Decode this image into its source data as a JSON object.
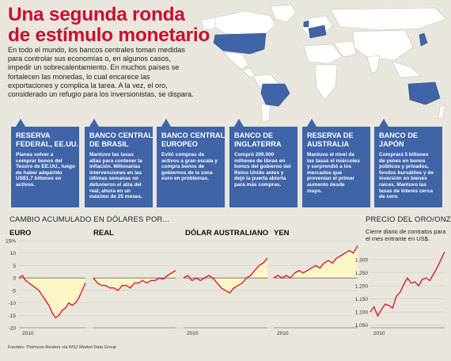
{
  "header": {
    "title_lines": [
      "Una segunda ronda",
      "de estímulo monetario"
    ],
    "intro_lines": [
      "En todo el mundo, los bancos centrales toman medidas",
      "para controlar sus economías o, en algunos casos,",
      "impedir un sobrecalentamiento. En muchos países se",
      "fortalecen las monedas, lo cual encarece las",
      "exportaciones y complica la tarea. A la vez, el oro,",
      "considerado un refugio para los inversionistas, se dispara."
    ]
  },
  "colors": {
    "title_red": "#c8102e",
    "card_blue": "#3f64a8",
    "map_highlight": "#3f64a8",
    "map_land": "#ffffff",
    "line_red": "#d21f2b",
    "fill_yellow": "#fdf6c6"
  },
  "banks": [
    {
      "name_lines": [
        "RESERVA",
        "FEDERAL, EE.UU."
      ],
      "text_lines": [
        "Planea volver a",
        "comprar bonos del",
        "Tesoro de EE.UU., luego",
        "de haber adquirido",
        "US$1,7 billones en",
        "activos."
      ]
    },
    {
      "name_lines": [
        "BANCO CENTRAL",
        "DE BRASIL"
      ],
      "text_lines": [
        "Mantuvo las tasas",
        "altas para contener la",
        "inflación. Millonarias",
        "intervenciones en las",
        "últimas semanas no",
        "detuvieron el alza del",
        "real, ahora en un",
        "máximo de 25 meses."
      ]
    },
    {
      "name_lines": [
        "BANCO CENTRAL",
        "EUROPEO"
      ],
      "text_lines": [
        "Evitó compras de",
        "activos a gran escala y",
        "compra bonos de",
        "gobiernos de la zona",
        "euro en problemas."
      ]
    },
    {
      "name_lines": [
        "BANCO DE",
        "INGLATERRA"
      ],
      "text_lines": [
        "Compró 200.000",
        "millones de libras en",
        "bonos del gobierno del",
        "Reino Unido antes y",
        "dejó la puerta abierta",
        "para más compras."
      ]
    },
    {
      "name_lines": [
        "RESERVA DE",
        "AUSTRALIA"
      ],
      "text_lines": [
        "Mantuvo el nivel de",
        "las tasas el miércoles",
        "y sorprendió a los",
        "mercados que",
        "prevenían el primer",
        "aumento desde",
        "mayo."
      ]
    },
    {
      "name_lines": [
        "BANCO DE",
        "JAPÓN"
      ],
      "text_lines": [
        "Comprará 5 billones",
        "de yenes en bonos",
        "públicos y privados,",
        "fondos bursátiles y de",
        "inversión en bienes",
        "raíces. Mantuvo las",
        "tasas de interés cerca",
        "de cero."
      ]
    }
  ],
  "charts": {
    "currency_section_label": "CAMBIO ACUMULADO EN DÓLARES POR...",
    "gold_section_label": "PRECIO DEL ORO/ONZA",
    "gold_subtitle_lines": [
      "Cierre diario de contratos para",
      "el mes entrante en US$."
    ],
    "source": "Fuentes: Thomson Reuters vía WSJ Market Data Group"
  },
  "chart_data": [
    {
      "type": "area",
      "title": "EURO",
      "xlabel": "",
      "ylabel": "",
      "x_tick_labels": [
        "2010"
      ],
      "y_tick_labels": [
        "15%",
        "10",
        "5",
        "0",
        "-5",
        "-10",
        "-15",
        "-20"
      ],
      "ylim": [
        -20,
        15
      ],
      "baseline": 0,
      "x": [
        0,
        0.05,
        0.1,
        0.15,
        0.2,
        0.25,
        0.3,
        0.35,
        0.4,
        0.45,
        0.5,
        0.55,
        0.6,
        0.65,
        0.7,
        0.75,
        0.8,
        0.85,
        0.9,
        0.95,
        1.0
      ],
      "values": [
        0,
        1,
        -1,
        -2,
        -3,
        -4,
        -5,
        -7,
        -9,
        -11,
        -14,
        -16,
        -15,
        -13,
        -12,
        -10,
        -11,
        -10,
        -8,
        -5,
        -2
      ]
    },
    {
      "type": "area",
      "title": "REAL",
      "xlabel": "",
      "ylabel": "",
      "x_tick_labels": [],
      "ylim": [
        -20,
        15
      ],
      "baseline": 0,
      "x": [
        0,
        0.05,
        0.1,
        0.15,
        0.2,
        0.25,
        0.3,
        0.35,
        0.4,
        0.45,
        0.5,
        0.55,
        0.6,
        0.65,
        0.7,
        0.75,
        0.8,
        0.85,
        0.9,
        0.95,
        1.0
      ],
      "values": [
        0,
        -2,
        -3,
        -3,
        -4,
        -4,
        -5,
        -3,
        -3,
        -4,
        -2,
        -2,
        -1,
        -2,
        -1,
        -1,
        0,
        -0.5,
        1,
        2,
        3
      ]
    },
    {
      "type": "area",
      "title": "DÓLAR AUSTRALIANO",
      "xlabel": "",
      "ylabel": "",
      "x_tick_labels": [
        "2010"
      ],
      "ylim": [
        -20,
        15
      ],
      "baseline": 0,
      "x": [
        0,
        0.05,
        0.1,
        0.15,
        0.2,
        0.25,
        0.3,
        0.35,
        0.4,
        0.45,
        0.5,
        0.55,
        0.6,
        0.65,
        0.7,
        0.75,
        0.8,
        0.85,
        0.9,
        0.95,
        1.0
      ],
      "values": [
        0,
        1,
        -1,
        0,
        -1,
        0,
        1,
        0,
        -2,
        -4,
        -5,
        -6,
        -4,
        -3,
        -2,
        0,
        1,
        3,
        5,
        6,
        8
      ]
    },
    {
      "type": "area",
      "title": "YEN",
      "xlabel": "",
      "ylabel": "",
      "x_tick_labels": [
        "2010"
      ],
      "ylim": [
        -20,
        15
      ],
      "baseline": 0,
      "x": [
        0,
        0.05,
        0.1,
        0.15,
        0.2,
        0.25,
        0.3,
        0.35,
        0.4,
        0.45,
        0.5,
        0.55,
        0.6,
        0.65,
        0.7,
        0.75,
        0.8,
        0.85,
        0.9,
        0.95,
        1.0
      ],
      "values": [
        0,
        1,
        0,
        1,
        0,
        2,
        3,
        2,
        3,
        4,
        5,
        4,
        6,
        7,
        6,
        8,
        9,
        10,
        11,
        10,
        13
      ]
    },
    {
      "type": "line",
      "title": "PRECIO DEL ORO/ONZA",
      "xlabel": "",
      "ylabel": "",
      "x_tick_labels": [
        "2010"
      ],
      "y_tick_labels": [
        "1.300",
        "1.250",
        "1.200",
        "1.150",
        "1.100",
        "1.050"
      ],
      "ylim": [
        1040,
        1330
      ],
      "x": [
        0,
        0.05,
        0.1,
        0.15,
        0.2,
        0.25,
        0.3,
        0.35,
        0.4,
        0.45,
        0.5,
        0.55,
        0.6,
        0.65,
        0.7,
        0.75,
        0.8,
        0.85,
        0.9,
        0.95,
        1.0
      ],
      "values": [
        1100,
        1120,
        1085,
        1110,
        1130,
        1125,
        1115,
        1160,
        1175,
        1205,
        1230,
        1210,
        1215,
        1200,
        1225,
        1230,
        1220,
        1245,
        1270,
        1300,
        1340
      ]
    }
  ]
}
